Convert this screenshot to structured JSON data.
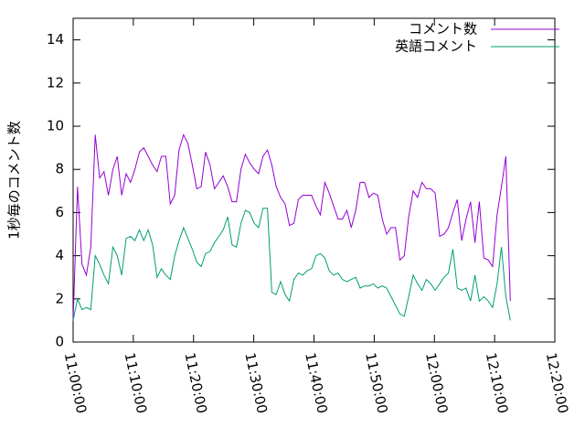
{
  "chart_data": {
    "type": "line",
    "y_label": "1秒毎のコメント数",
    "x": [
      "11:00:00",
      "11:00:44",
      "11:01:28",
      "11:02:12",
      "11:02:56",
      "11:03:40",
      "11:04:24",
      "11:05:08",
      "11:05:52",
      "11:06:36",
      "11:07:20",
      "11:08:04",
      "11:08:48",
      "11:09:32",
      "11:10:16",
      "11:11:00",
      "11:11:44",
      "11:12:28",
      "11:13:12",
      "11:13:56",
      "11:14:40",
      "11:15:24",
      "11:16:08",
      "11:16:52",
      "11:17:36",
      "11:18:20",
      "11:19:04",
      "11:19:48",
      "11:20:32",
      "11:21:16",
      "11:22:00",
      "11:22:44",
      "11:23:28",
      "11:24:12",
      "11:24:56",
      "11:25:40",
      "11:26:24",
      "11:27:08",
      "11:27:52",
      "11:28:36",
      "11:29:20",
      "11:30:04",
      "11:30:48",
      "11:31:32",
      "11:32:16",
      "11:33:00",
      "11:33:44",
      "11:34:28",
      "11:35:12",
      "11:35:56",
      "11:36:40",
      "11:37:24",
      "11:38:08",
      "11:38:52",
      "11:39:36",
      "11:40:20",
      "11:41:04",
      "11:41:48",
      "11:42:32",
      "11:43:16",
      "11:44:00",
      "11:44:44",
      "11:45:28",
      "11:46:12",
      "11:46:56",
      "11:47:40",
      "11:48:24",
      "11:49:08",
      "11:49:52",
      "11:50:36",
      "11:51:20",
      "11:52:04",
      "11:52:48",
      "11:53:32",
      "11:54:16",
      "11:55:00",
      "11:55:44",
      "11:56:28",
      "11:57:12",
      "11:57:56",
      "11:58:40",
      "11:59:24",
      "12:00:08",
      "12:00:52",
      "12:01:36",
      "12:02:20",
      "12:03:04",
      "12:03:48",
      "12:04:32",
      "12:05:16",
      "12:06:00",
      "12:06:44",
      "12:07:28",
      "12:08:12",
      "12:08:56",
      "12:09:40",
      "12:10:24",
      "12:11:08",
      "12:11:52",
      "12:12:36"
    ],
    "series": [
      {
        "name": "コメント数",
        "color": "#9400d3",
        "values": [
          1.0,
          7.2,
          3.6,
          3.1,
          4.4,
          9.6,
          7.6,
          7.9,
          6.8,
          8.0,
          8.6,
          6.8,
          7.8,
          7.4,
          8.0,
          8.8,
          9.0,
          8.6,
          8.2,
          7.9,
          8.6,
          8.6,
          6.4,
          6.8,
          8.9,
          9.6,
          9.2,
          8.2,
          7.1,
          7.2,
          8.8,
          8.2,
          7.1,
          7.4,
          7.7,
          7.2,
          6.5,
          6.5,
          8.0,
          8.7,
          8.3,
          8.0,
          7.8,
          8.6,
          8.9,
          8.2,
          7.2,
          6.7,
          6.4,
          5.4,
          5.5,
          6.6,
          6.8,
          6.8,
          6.8,
          6.3,
          5.9,
          7.4,
          6.9,
          6.3,
          5.7,
          5.7,
          6.1,
          5.3,
          6.1,
          7.4,
          7.4,
          6.7,
          6.9,
          6.8,
          5.7,
          5.0,
          5.3,
          5.3,
          3.8,
          4.0,
          5.8,
          7.0,
          6.7,
          7.4,
          7.1,
          7.1,
          6.9,
          4.9,
          5.0,
          5.3,
          6.0,
          6.6,
          4.7,
          5.7,
          6.5,
          4.6,
          6.5,
          3.9,
          3.8,
          3.5,
          5.9,
          7.2,
          8.6,
          1.9
        ]
      },
      {
        "name": "英語コメント",
        "color": "#009e73",
        "values": [
          1.0,
          2.0,
          1.5,
          1.6,
          1.5,
          4.0,
          3.6,
          3.1,
          2.7,
          4.4,
          4.0,
          3.1,
          4.8,
          4.9,
          4.7,
          5.2,
          4.7,
          5.2,
          4.5,
          3.0,
          3.4,
          3.1,
          2.9,
          4.0,
          4.7,
          5.3,
          4.8,
          4.3,
          3.7,
          3.5,
          4.1,
          4.2,
          4.6,
          4.9,
          5.2,
          5.8,
          4.5,
          4.4,
          5.5,
          6.1,
          6.0,
          5.5,
          5.3,
          6.2,
          6.2,
          2.3,
          2.2,
          2.8,
          2.2,
          1.9,
          2.9,
          3.2,
          3.1,
          3.3,
          3.4,
          4.0,
          4.1,
          3.9,
          3.3,
          3.1,
          3.2,
          2.9,
          2.8,
          2.9,
          3.0,
          2.5,
          2.6,
          2.6,
          2.7,
          2.5,
          2.6,
          2.5,
          2.1,
          1.7,
          1.3,
          1.2,
          2.1,
          3.1,
          2.7,
          2.4,
          2.9,
          2.7,
          2.4,
          2.7,
          3.0,
          3.2,
          4.3,
          2.5,
          2.4,
          2.5,
          1.9,
          3.1,
          1.9,
          2.1,
          1.9,
          1.6,
          2.7,
          4.4,
          2.1,
          1.0
        ]
      }
    ],
    "xlim": [
      "11:00:00",
      "12:20:00"
    ],
    "xticks": [
      "11:00:00",
      "11:10:00",
      "11:20:00",
      "11:30:00",
      "11:40:00",
      "11:50:00",
      "12:00:00",
      "12:10:00",
      "12:20:00"
    ],
    "ylim": [
      0,
      15
    ],
    "yticks": [
      0,
      2,
      4,
      6,
      8,
      10,
      12,
      14
    ],
    "legend": "top-right"
  }
}
